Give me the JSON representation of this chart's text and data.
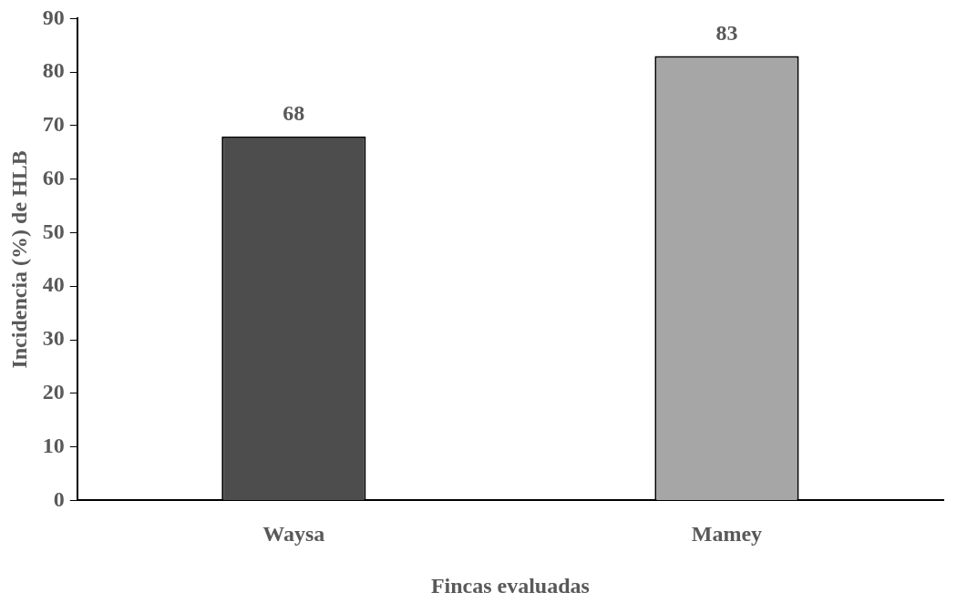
{
  "chart_data": {
    "type": "bar",
    "xlabel": "Fincas evaluadas",
    "ylabel": "Incidencia (%) de HLB",
    "categories": [
      "Waysa",
      "Mamey"
    ],
    "values": [
      68,
      83
    ],
    "colors": [
      "#4d4d4d",
      "#a6a6a6"
    ],
    "ylim": [
      0,
      90
    ],
    "yticks": [
      0,
      10,
      20,
      30,
      40,
      50,
      60,
      70,
      80,
      90
    ],
    "grid": false,
    "legend": false,
    "data_labels": true
  }
}
